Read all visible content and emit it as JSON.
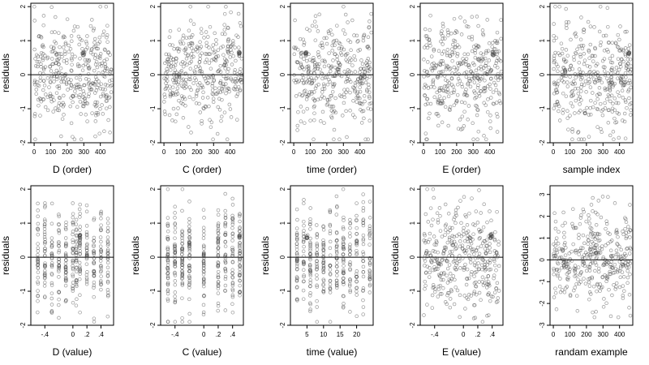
{
  "chart_data": [
    {
      "type": "scatter",
      "xlabel": "D (order)",
      "ylabel": "residuals",
      "xlim": [
        -20,
        480
      ],
      "ylim": [
        -2,
        2.1
      ],
      "xticks": [
        0,
        100,
        200,
        300,
        400
      ],
      "yticks": [
        -2,
        -1,
        0,
        1,
        2
      ],
      "ref_line_y": 0,
      "series": [
        {
          "x_range": [
            1,
            470
          ],
          "y_range": [
            -1.9,
            2.0
          ],
          "n": 380,
          "highlight": [
            {
              "x": 300,
              "y": 0.62
            }
          ]
        }
      ]
    },
    {
      "type": "scatter",
      "xlabel": "C (order)",
      "ylabel": "residuals",
      "xlim": [
        -20,
        480
      ],
      "ylim": [
        -2,
        2.1
      ],
      "xticks": [
        0,
        100,
        200,
        300,
        400
      ],
      "yticks": [
        -2,
        -1,
        0,
        1,
        2
      ],
      "ref_line_y": 0,
      "series": [
        {
          "x_range": [
            1,
            470
          ],
          "y_range": [
            -1.9,
            2.0
          ],
          "n": 380,
          "highlight": [
            {
              "x": 455,
              "y": 0.62
            }
          ]
        }
      ]
    },
    {
      "type": "scatter",
      "xlabel": "time (order)",
      "ylabel": "residuals",
      "xlim": [
        -20,
        480
      ],
      "ylim": [
        -2,
        2.1
      ],
      "xticks": [
        0,
        100,
        200,
        300,
        400
      ],
      "yticks": [
        -2,
        -1,
        0,
        1,
        2
      ],
      "ref_line_y": 0,
      "series": [
        {
          "x_range": [
            1,
            470
          ],
          "y_range": [
            -1.9,
            2.0
          ],
          "n": 380,
          "highlight": [
            {
              "x": 75,
              "y": 0.62
            }
          ]
        }
      ]
    },
    {
      "type": "scatter",
      "xlabel": "E (order)",
      "ylabel": "residuals",
      "xlim": [
        -20,
        480
      ],
      "ylim": [
        -2,
        2.1
      ],
      "xticks": [
        0,
        100,
        200,
        300,
        400
      ],
      "yticks": [
        -2,
        -1,
        0,
        1,
        2
      ],
      "ref_line_y": 0,
      "series": [
        {
          "x_range": [
            1,
            470
          ],
          "y_range": [
            -1.9,
            2.0
          ],
          "n": 380,
          "highlight": [
            {
              "x": 420,
              "y": 0.62
            }
          ]
        }
      ]
    },
    {
      "type": "scatter",
      "xlabel": "sample index",
      "ylabel": "residuals",
      "xlim": [
        -20,
        480
      ],
      "ylim": [
        -2,
        2.1
      ],
      "xticks": [
        0,
        100,
        200,
        300,
        400
      ],
      "yticks": [
        -2,
        -1,
        0,
        1,
        2
      ],
      "ref_line_y": 0,
      "series": [
        {
          "x_range": [
            1,
            470
          ],
          "y_range": [
            -1.9,
            2.0
          ],
          "n": 380,
          "highlight": [
            {
              "x": 455,
              "y": 0.62
            }
          ]
        }
      ]
    },
    {
      "type": "scatter",
      "xlabel": "D (value)",
      "ylabel": "residuals",
      "xlim": [
        -0.6,
        0.58
      ],
      "ylim": [
        -2,
        2.1
      ],
      "xticks": [
        -0.4,
        0.0,
        0.2,
        0.4
      ],
      "yticks": [
        -2,
        -1,
        0,
        1,
        2
      ],
      "ref_line_y": 0,
      "series": [
        {
          "x_levels": [
            -0.5,
            -0.4,
            -0.3,
            -0.2,
            -0.1,
            0.0,
            0.05,
            0.1,
            0.2,
            0.3,
            0.4,
            0.5
          ],
          "y_range": [
            -1.9,
            2.0
          ],
          "n": 380,
          "highlight": [
            {
              "x": 0.1,
              "y": 0.62
            }
          ]
        }
      ]
    },
    {
      "type": "scatter",
      "xlabel": "C (value)",
      "ylabel": "residuals",
      "xlim": [
        -0.6,
        0.55
      ],
      "ylim": [
        -2,
        2.1
      ],
      "xticks": [
        -0.4,
        0.0,
        0.2,
        0.4
      ],
      "yticks": [
        -2,
        -1,
        0,
        1,
        2
      ],
      "ref_line_y": 0,
      "series": [
        {
          "x_levels": [
            -0.5,
            -0.4,
            -0.3,
            -0.2,
            0.0,
            0.2,
            0.3,
            0.4,
            0.5
          ],
          "y_range": [
            -1.9,
            2.0
          ],
          "n": 380,
          "highlight": [
            {
              "x": 0.5,
              "y": 0.62
            }
          ]
        }
      ]
    },
    {
      "type": "scatter",
      "xlabel": "time (value)",
      "ylabel": "residuals",
      "xlim": [
        0,
        25
      ],
      "ylim": [
        -2,
        2.1
      ],
      "xticks": [
        5,
        10,
        15,
        20
      ],
      "yticks": [
        -2,
        -1,
        0,
        1,
        2
      ],
      "ref_line_y": 0,
      "series": [
        {
          "x_levels": [
            2,
            4,
            6,
            8,
            10,
            12,
            14,
            16,
            18,
            20,
            22,
            24
          ],
          "y_range": [
            -1.9,
            2.0
          ],
          "n": 380,
          "highlight": [
            {
              "x": 5,
              "y": 0.62
            }
          ]
        }
      ]
    },
    {
      "type": "scatter",
      "xlabel": "E (value)",
      "ylabel": "residuals",
      "xlim": [
        -0.6,
        0.55
      ],
      "ylim": [
        -2,
        2.1
      ],
      "xticks": [
        -0.4,
        0.0,
        0.2,
        0.4
      ],
      "yticks": [
        -2,
        -1,
        0,
        1,
        2
      ],
      "ref_line_y": 0,
      "series": [
        {
          "x_range": [
            -0.55,
            0.5
          ],
          "y_range": [
            -1.9,
            2.0
          ],
          "n": 380,
          "highlight": [
            {
              "x": 0.38,
              "y": 0.62
            }
          ]
        }
      ]
    },
    {
      "type": "scatter",
      "xlabel": "randam example",
      "ylabel": "residuals",
      "xlim": [
        -20,
        480
      ],
      "ylim": [
        -3,
        3.4
      ],
      "xticks": [
        0,
        100,
        200,
        300,
        400
      ],
      "yticks": [
        -3,
        -2,
        -1,
        0,
        1,
        2,
        3
      ],
      "ref_line_y": 0,
      "series": [
        {
          "x_range": [
            1,
            470
          ],
          "y_range": [
            -2.9,
            2.9
          ],
          "n": 380,
          "highlight": []
        }
      ]
    }
  ]
}
